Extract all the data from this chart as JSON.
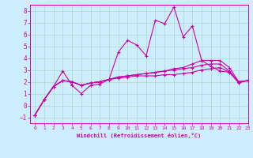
{
  "xlabel": "Windchill (Refroidissement éolien,°C)",
  "bg_color": "#cceeff",
  "grid_color": "#b0d8cc",
  "line_color": "#cc00aa",
  "xlim": [
    -0.5,
    23
  ],
  "ylim": [
    -1.5,
    8.5
  ],
  "xticks": [
    0,
    1,
    2,
    3,
    4,
    5,
    6,
    7,
    8,
    9,
    10,
    11,
    12,
    13,
    14,
    15,
    16,
    17,
    18,
    19,
    20,
    21,
    22,
    23
  ],
  "yticks": [
    -1,
    0,
    1,
    2,
    3,
    4,
    5,
    6,
    7,
    8
  ],
  "series1_jagged": {
    "x": [
      0,
      1,
      2,
      3,
      4,
      5,
      6,
      7,
      8,
      9,
      10,
      11,
      12,
      13,
      14,
      15,
      16,
      17,
      18,
      19,
      20,
      21,
      22,
      23
    ],
    "y": [
      -0.8,
      0.5,
      1.6,
      2.9,
      1.7,
      1.0,
      1.7,
      1.8,
      2.2,
      4.5,
      5.5,
      5.1,
      4.2,
      7.2,
      6.9,
      8.3,
      5.8,
      6.7,
      3.8,
      3.3,
      2.9,
      2.8,
      1.9,
      2.1
    ]
  },
  "series2_flat": {
    "x": [
      0,
      1,
      2,
      3,
      4,
      5,
      6,
      7,
      8,
      9,
      10,
      11,
      12,
      13,
      14,
      15,
      16,
      17,
      18,
      19,
      20,
      21,
      22,
      23
    ],
    "y": [
      -0.8,
      0.5,
      1.6,
      2.1,
      2.0,
      1.7,
      1.9,
      2.0,
      2.2,
      2.3,
      2.4,
      2.5,
      2.5,
      2.5,
      2.6,
      2.6,
      2.7,
      2.8,
      3.0,
      3.1,
      3.2,
      2.8,
      2.0,
      2.1
    ]
  },
  "series3_flat": {
    "x": [
      0,
      1,
      2,
      3,
      4,
      5,
      6,
      7,
      8,
      9,
      10,
      11,
      12,
      13,
      14,
      15,
      16,
      17,
      18,
      19,
      20,
      21,
      22,
      23
    ],
    "y": [
      -0.8,
      0.5,
      1.6,
      2.1,
      2.0,
      1.7,
      1.9,
      2.0,
      2.2,
      2.4,
      2.5,
      2.6,
      2.7,
      2.8,
      2.9,
      3.0,
      3.1,
      3.2,
      3.4,
      3.5,
      3.5,
      2.9,
      2.0,
      2.1
    ]
  },
  "series4_flat": {
    "x": [
      0,
      1,
      2,
      3,
      4,
      5,
      6,
      7,
      8,
      9,
      10,
      11,
      12,
      13,
      14,
      15,
      16,
      17,
      18,
      19,
      20,
      21,
      22,
      23
    ],
    "y": [
      -0.8,
      0.5,
      1.6,
      2.1,
      2.0,
      1.7,
      1.9,
      2.0,
      2.2,
      2.4,
      2.5,
      2.6,
      2.7,
      2.8,
      2.9,
      3.1,
      3.2,
      3.5,
      3.8,
      3.8,
      3.8,
      3.2,
      2.0,
      2.1
    ]
  }
}
